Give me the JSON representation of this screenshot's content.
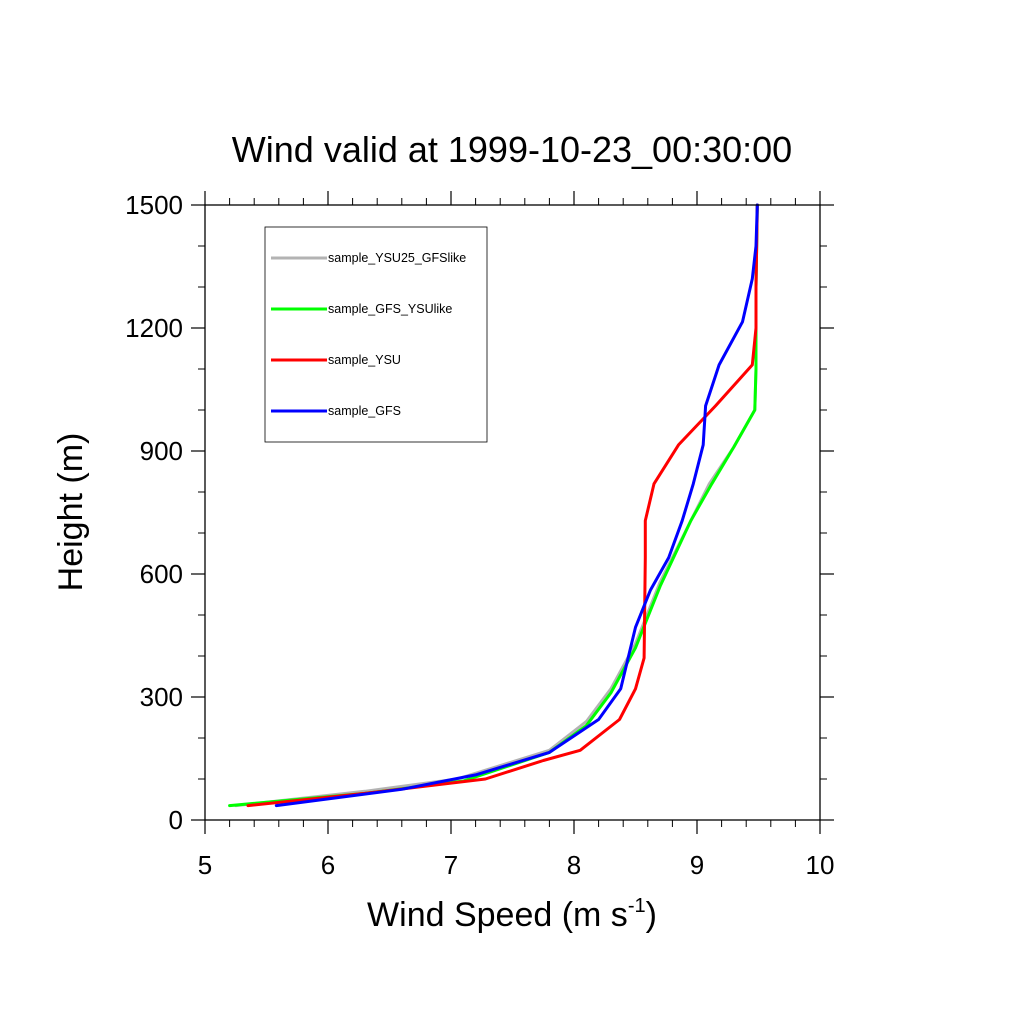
{
  "chart_data": {
    "type": "line",
    "title": "Wind valid at 1999-10-23_00:30:00",
    "xlabel": "Wind Speed (m s",
    "xlabel_sup": "-1",
    "xlabel_end": ")",
    "ylabel": "Height (m)",
    "xlim": [
      5,
      10
    ],
    "ylim": [
      0,
      1500
    ],
    "xticks": [
      5,
      6,
      7,
      8,
      9,
      10
    ],
    "yticks": [
      0,
      300,
      600,
      900,
      1200,
      1500
    ],
    "grid": false,
    "legend": "top-left",
    "series": [
      {
        "name": "sample_YSU25_GFSlike",
        "color": "#b3b3b3",
        "points": [
          [
            5.25,
            35
          ],
          [
            6.3,
            70
          ],
          [
            7.05,
            100
          ],
          [
            7.8,
            170
          ],
          [
            8.1,
            240
          ],
          [
            8.3,
            320
          ],
          [
            8.5,
            430
          ],
          [
            8.7,
            580
          ],
          [
            8.9,
            700
          ],
          [
            9.1,
            820
          ],
          [
            9.3,
            910
          ],
          [
            9.47,
            1000
          ],
          [
            9.48,
            1100
          ],
          [
            9.48,
            1300
          ],
          [
            9.49,
            1500
          ]
        ]
      },
      {
        "name": "sample_GFS_YSUlike",
        "color": "#00ff00",
        "points": [
          [
            5.2,
            35
          ],
          [
            6.3,
            65
          ],
          [
            7.1,
            95
          ],
          [
            7.8,
            165
          ],
          [
            8.1,
            230
          ],
          [
            8.3,
            310
          ],
          [
            8.5,
            420
          ],
          [
            8.7,
            570
          ],
          [
            8.95,
            730
          ],
          [
            9.12,
            820
          ],
          [
            9.3,
            910
          ],
          [
            9.47,
            1000
          ],
          [
            9.48,
            1100
          ],
          [
            9.48,
            1300
          ],
          [
            9.49,
            1500
          ]
        ]
      },
      {
        "name": "sample_YSU",
        "color": "#ff0000",
        "points": [
          [
            5.35,
            35
          ],
          [
            6.3,
            65
          ],
          [
            7.28,
            100
          ],
          [
            7.75,
            145
          ],
          [
            8.05,
            170
          ],
          [
            8.37,
            245
          ],
          [
            8.5,
            320
          ],
          [
            8.57,
            395
          ],
          [
            8.58,
            640
          ],
          [
            8.58,
            730
          ],
          [
            8.65,
            820
          ],
          [
            8.85,
            915
          ],
          [
            9.15,
            1010
          ],
          [
            9.45,
            1110
          ],
          [
            9.48,
            1200
          ],
          [
            9.48,
            1300
          ],
          [
            9.49,
            1500
          ]
        ]
      },
      {
        "name": "sample_GFS",
        "color": "#0000ff",
        "points": [
          [
            5.58,
            35
          ],
          [
            6.6,
            75
          ],
          [
            7.2,
            110
          ],
          [
            7.8,
            165
          ],
          [
            8.2,
            245
          ],
          [
            8.38,
            320
          ],
          [
            8.5,
            470
          ],
          [
            8.62,
            560
          ],
          [
            8.77,
            640
          ],
          [
            8.88,
            730
          ],
          [
            8.97,
            820
          ],
          [
            9.05,
            915
          ],
          [
            9.07,
            1010
          ],
          [
            9.18,
            1110
          ],
          [
            9.37,
            1215
          ],
          [
            9.45,
            1320
          ],
          [
            9.48,
            1400
          ],
          [
            9.49,
            1500
          ]
        ]
      }
    ]
  }
}
